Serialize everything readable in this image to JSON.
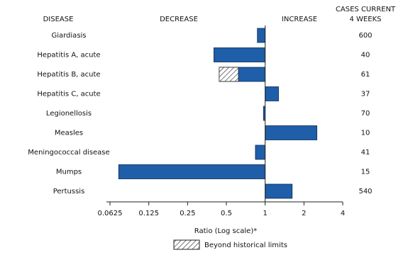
{
  "chart_data": {
    "type": "bar",
    "orientation": "horizontal",
    "log_scale": true,
    "headers": {
      "disease": "DISEASE",
      "decrease": "DECREASE",
      "increase": "INCREASE",
      "cases": [
        "CASES CURRENT",
        "4 WEEKS"
      ]
    },
    "categories": [
      "Giardiasis",
      "Hepatitis A, acute",
      "Hepatitis B, acute",
      "Hepatitis C, acute",
      "Legionellosis",
      "Measles",
      "Meningococcal disease",
      "Mumps",
      "Pertussis"
    ],
    "values": [
      0.87,
      0.4,
      0.44,
      1.27,
      0.97,
      2.52,
      0.84,
      0.073,
      1.62
    ],
    "historical_limits": [
      null,
      null,
      0.62,
      null,
      null,
      null,
      null,
      null,
      null
    ],
    "cases_current_4_weeks": [
      600,
      40,
      61,
      37,
      70,
      10,
      41,
      15,
      540
    ],
    "color": "#1f5ea8",
    "xlim": [
      0.0625,
      4
    ],
    "xticks": [
      0.0625,
      0.125,
      0.25,
      0.5,
      1,
      2,
      4
    ],
    "xlabel": "Ratio (Log scale)*",
    "legend": "Beyond historical limits"
  }
}
